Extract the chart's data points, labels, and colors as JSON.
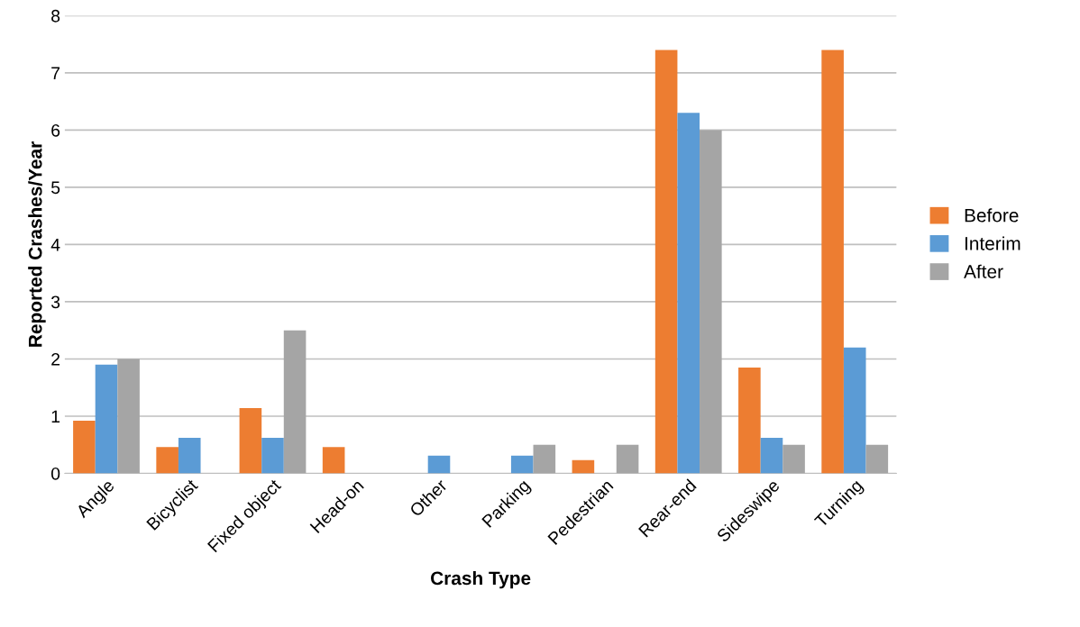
{
  "chart_data": {
    "type": "bar",
    "xlabel": "Crash Type",
    "ylabel": "Reported Crashes/Year",
    "categories": [
      "Angle",
      "Bicyclist",
      "Fixed object",
      "Head-on",
      "Other",
      "Parking",
      "Pedestrian",
      "Rear-end",
      "Sideswipe",
      "Turning"
    ],
    "series": [
      {
        "name": "Before",
        "color": "#ed7d31",
        "values": [
          0.92,
          0.46,
          1.14,
          0.46,
          0,
          0,
          0.23,
          7.4,
          1.85,
          7.4
        ]
      },
      {
        "name": "Interim",
        "color": "#5b9bd5",
        "values": [
          1.9,
          0.62,
          0.62,
          0,
          0.31,
          0.31,
          0,
          6.3,
          0.62,
          2.2
        ]
      },
      {
        "name": "After",
        "color": "#a5a5a5",
        "values": [
          2.0,
          0,
          2.5,
          0,
          0,
          0.5,
          0.5,
          6.0,
          0.5,
          0.5
        ]
      }
    ],
    "ylim": [
      0,
      8
    ],
    "yticks": [
      0,
      1,
      2,
      3,
      4,
      5,
      6,
      7,
      8
    ],
    "grid": "y",
    "legend": "right"
  }
}
